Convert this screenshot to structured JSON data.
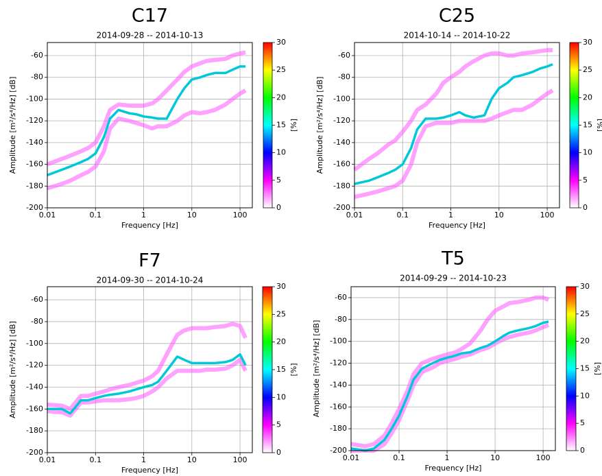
{
  "chart_data": [
    {
      "type": "ppsd",
      "title": "C17",
      "subtitle": "2014-09-28 -- 2014-10-13",
      "xlabel": "Frequency [Hz]",
      "ylabel": "Amplitude [m²/s⁴/Hz] [dB]",
      "x": [
        0.01,
        0.02,
        0.03,
        0.05,
        0.07,
        0.1,
        0.15,
        0.2,
        0.3,
        0.5,
        0.7,
        1,
        1.5,
        2,
        3,
        5,
        7,
        10,
        15,
        20,
        30,
        50,
        70,
        100,
        130
      ],
      "series": [
        {
          "color": "#ff55ff",
          "values": [
            -160,
            -155,
            -152,
            -148,
            -145,
            -140,
            -125,
            -110,
            -105,
            -106,
            -106,
            -106,
            -104,
            -100,
            -92,
            -82,
            -75,
            -70,
            -67,
            -65,
            -64,
            -63,
            -60,
            -58,
            -57
          ]
        },
        {
          "color": "#ff55ff",
          "values": [
            -182,
            -178,
            -175,
            -170,
            -167,
            -162,
            -148,
            -127,
            -118,
            -120,
            -122,
            -124,
            -127,
            -125,
            -125,
            -120,
            -115,
            -112,
            -113,
            -112,
            -110,
            -105,
            -100,
            -95,
            -92
          ]
        },
        {
          "color": "#00c8d8",
          "values": [
            -170,
            -165,
            -162,
            -158,
            -155,
            -150,
            -135,
            -118,
            -110,
            -113,
            -114,
            -116,
            -117,
            -118,
            -118,
            -100,
            -90,
            -82,
            -80,
            -78,
            -76,
            -76,
            -73,
            -70,
            -70
          ]
        }
      ],
      "log_x": true,
      "grid": true,
      "xlim": [
        0.01,
        180
      ],
      "xticks": [
        0.01,
        0.1,
        1,
        10,
        100
      ],
      "ylim": [
        -200,
        -48
      ],
      "yticks": [
        -200,
        -180,
        -160,
        -140,
        -120,
        -100,
        -80,
        -60
      ],
      "clim": [
        0,
        30
      ],
      "cticks": [
        0,
        5,
        10,
        15,
        20,
        25,
        30
      ],
      "clabel": "[%]",
      "colormap": [
        "#ffffff",
        "#ff00ff",
        "#0000ff",
        "#00ffff",
        "#00ff00",
        "#ffff00",
        "#ff0000"
      ]
    },
    {
      "type": "ppsd",
      "title": "C25",
      "subtitle": "2014-10-14 -- 2014-10-22",
      "xlabel": "Frequency [Hz]",
      "ylabel": "Amplitude [m²/s⁴/Hz] [dB]",
      "x": [
        0.01,
        0.02,
        0.03,
        0.05,
        0.07,
        0.1,
        0.15,
        0.2,
        0.3,
        0.5,
        0.7,
        1,
        1.5,
        2,
        3,
        5,
        7,
        10,
        15,
        20,
        30,
        50,
        70,
        100,
        130
      ],
      "series": [
        {
          "color": "#ff55ff",
          "values": [
            -165,
            -155,
            -150,
            -142,
            -138,
            -130,
            -120,
            -110,
            -105,
            -95,
            -85,
            -80,
            -75,
            -70,
            -65,
            -60,
            -58,
            -58,
            -60,
            -60,
            -58,
            -57,
            -56,
            -55,
            -55
          ]
        },
        {
          "color": "#ff55ff",
          "values": [
            -190,
            -187,
            -185,
            -182,
            -180,
            -175,
            -160,
            -140,
            -125,
            -122,
            -122,
            -122,
            -120,
            -120,
            -120,
            -120,
            -118,
            -115,
            -112,
            -110,
            -110,
            -105,
            -100,
            -95,
            -92
          ]
        },
        {
          "color": "#00c8d8",
          "values": [
            -178,
            -175,
            -172,
            -168,
            -165,
            -160,
            -145,
            -128,
            -118,
            -118,
            -117,
            -115,
            -112,
            -115,
            -117,
            -115,
            -100,
            -90,
            -85,
            -80,
            -78,
            -75,
            -72,
            -70,
            -68
          ]
        }
      ],
      "log_x": true,
      "grid": true,
      "xlim": [
        0.01,
        180
      ],
      "xticks": [
        0.01,
        0.1,
        1,
        10,
        100
      ],
      "ylim": [
        -200,
        -48
      ],
      "yticks": [
        -200,
        -180,
        -160,
        -140,
        -120,
        -100,
        -80,
        -60
      ],
      "clim": [
        0,
        30
      ],
      "cticks": [
        0,
        5,
        10,
        15,
        20,
        25,
        30
      ],
      "clabel": "[%]",
      "colormap": [
        "#ffffff",
        "#ff00ff",
        "#0000ff",
        "#00ffff",
        "#00ff00",
        "#ffff00",
        "#ff0000"
      ]
    },
    {
      "type": "ppsd",
      "title": "F7",
      "subtitle": "2014-09-30 -- 2014-10-24",
      "xlabel": "Frequency [Hz]",
      "ylabel": "Amplitude [m²/s⁴/Hz] [dB]",
      "x": [
        0.01,
        0.02,
        0.03,
        0.05,
        0.07,
        0.1,
        0.15,
        0.2,
        0.3,
        0.5,
        0.7,
        1,
        1.5,
        2,
        3,
        5,
        7,
        10,
        15,
        20,
        30,
        50,
        70,
        100,
        130
      ],
      "series": [
        {
          "color": "#ff55ff",
          "values": [
            -156,
            -157,
            -160,
            -148,
            -148,
            -146,
            -144,
            -142,
            -140,
            -138,
            -136,
            -134,
            -130,
            -125,
            -110,
            -92,
            -88,
            -86,
            -86,
            -86,
            -85,
            -84,
            -82,
            -84,
            -95
          ]
        },
        {
          "color": "#ff55ff",
          "values": [
            -162,
            -163,
            -166,
            -154,
            -154,
            -153,
            -152,
            -152,
            -152,
            -151,
            -150,
            -148,
            -144,
            -140,
            -132,
            -125,
            -125,
            -125,
            -125,
            -124,
            -124,
            -123,
            -120,
            -115,
            -125
          ]
        },
        {
          "color": "#00c8d8",
          "values": [
            -160,
            -160,
            -164,
            -152,
            -152,
            -150,
            -148,
            -147,
            -146,
            -144,
            -142,
            -140,
            -138,
            -135,
            -125,
            -112,
            -115,
            -118,
            -118,
            -118,
            -118,
            -117,
            -115,
            -110,
            -120
          ]
        }
      ],
      "log_x": true,
      "grid": true,
      "xlim": [
        0.01,
        180
      ],
      "xticks": [
        0.01,
        0.1,
        1,
        10,
        100
      ],
      "ylim": [
        -200,
        -48
      ],
      "yticks": [
        -200,
        -180,
        -160,
        -140,
        -120,
        -100,
        -80,
        -60
      ],
      "clim": [
        0,
        30
      ],
      "cticks": [
        0,
        5,
        10,
        15,
        20,
        25,
        30
      ],
      "clabel": "[%]",
      "colormap": [
        "#ffffff",
        "#ff00ff",
        "#0000ff",
        "#00ffff",
        "#00ff00",
        "#ffff00",
        "#ff0000"
      ]
    },
    {
      "type": "ppsd",
      "title": "T5",
      "subtitle": "2014-09-29 -- 2014-10-23",
      "xlabel": "Frequency [Hz]",
      "ylabel": "Amplitude [m²/s⁴/Hz] [dB]",
      "x": [
        0.01,
        0.02,
        0.03,
        0.05,
        0.07,
        0.1,
        0.15,
        0.2,
        0.3,
        0.5,
        0.7,
        1,
        1.5,
        2,
        3,
        5,
        7,
        10,
        15,
        20,
        30,
        50,
        70,
        100,
        130
      ],
      "series": [
        {
          "color": "#ff55ff",
          "values": [
            -194,
            -196,
            -194,
            -186,
            -175,
            -162,
            -145,
            -130,
            -120,
            -116,
            -114,
            -112,
            -110,
            -107,
            -102,
            -90,
            -80,
            -72,
            -68,
            -65,
            -64,
            -62,
            -60,
            -60,
            -62
          ]
        },
        {
          "color": "#ff55ff",
          "values": [
            -200,
            -200,
            -200,
            -194,
            -184,
            -172,
            -154,
            -140,
            -128,
            -124,
            -120,
            -118,
            -116,
            -114,
            -112,
            -108,
            -106,
            -102,
            -98,
            -96,
            -94,
            -92,
            -90,
            -87,
            -85
          ]
        },
        {
          "color": "#00c8d8",
          "values": [
            -198,
            -200,
            -198,
            -190,
            -180,
            -168,
            -150,
            -135,
            -125,
            -120,
            -117,
            -115,
            -113,
            -111,
            -110,
            -106,
            -104,
            -100,
            -95,
            -92,
            -90,
            -88,
            -86,
            -83,
            -82
          ]
        }
      ],
      "log_x": true,
      "grid": true,
      "xlim": [
        0.01,
        180
      ],
      "xticks": [
        0.01,
        0.1,
        1,
        10,
        100
      ],
      "ylim": [
        -200,
        -50
      ],
      "yticks": [
        -200,
        -180,
        -160,
        -140,
        -120,
        -100,
        -80,
        -60
      ],
      "clim": [
        0,
        30
      ],
      "cticks": [
        0,
        5,
        10,
        15,
        20,
        25,
        30
      ],
      "clabel": "[%]",
      "colormap": [
        "#ffffff",
        "#ff00ff",
        "#0000ff",
        "#00ffff",
        "#00ff00",
        "#ffff00",
        "#ff0000"
      ]
    }
  ]
}
